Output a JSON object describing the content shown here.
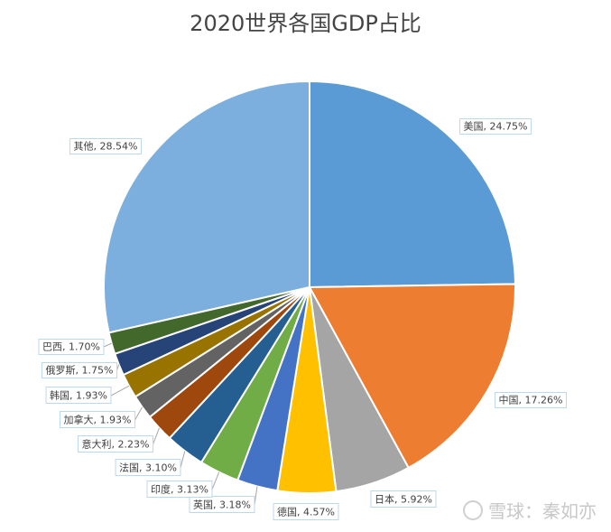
{
  "chart_data": {
    "type": "pie",
    "title": "2020世界各国GDP占比",
    "slices": [
      {
        "label": "美国",
        "value": 24.75,
        "text": "美国, 24.75%",
        "color": "#5B9BD5"
      },
      {
        "label": "中国",
        "value": 17.26,
        "text": "中国, 17.26%",
        "color": "#ED7D31"
      },
      {
        "label": "日本",
        "value": 5.92,
        "text": "日本, 5.92%",
        "color": "#A5A5A5"
      },
      {
        "label": "德国",
        "value": 4.57,
        "text": "德国, 4.57%",
        "color": "#FFC000"
      },
      {
        "label": "英国",
        "value": 3.18,
        "text": "英国, 3.18%",
        "color": "#4472C4"
      },
      {
        "label": "印度",
        "value": 3.13,
        "text": "印度, 3.13%",
        "color": "#70AD47"
      },
      {
        "label": "法国",
        "value": 3.1,
        "text": "法国, 3.10%",
        "color": "#255E91"
      },
      {
        "label": "意大利",
        "value": 2.23,
        "text": "意大利, 2.23%",
        "color": "#9E480E"
      },
      {
        "label": "加拿大",
        "value": 1.93,
        "text": "加拿大, 1.93%",
        "color": "#636363"
      },
      {
        "label": "韩国",
        "value": 1.93,
        "text": "韩国, 1.93%",
        "color": "#997300"
      },
      {
        "label": "俄罗斯",
        "value": 1.75,
        "text": "俄罗斯, 1.75%",
        "color": "#264478"
      },
      {
        "label": "巴西",
        "value": 1.7,
        "text": "巴西, 1.70%",
        "color": "#43682B"
      },
      {
        "label": "其他",
        "value": 28.54,
        "text": "其他, 28.54%",
        "color": "#7CAFDD"
      }
    ]
  },
  "watermark": {
    "text": "雪球：秦如亦"
  }
}
